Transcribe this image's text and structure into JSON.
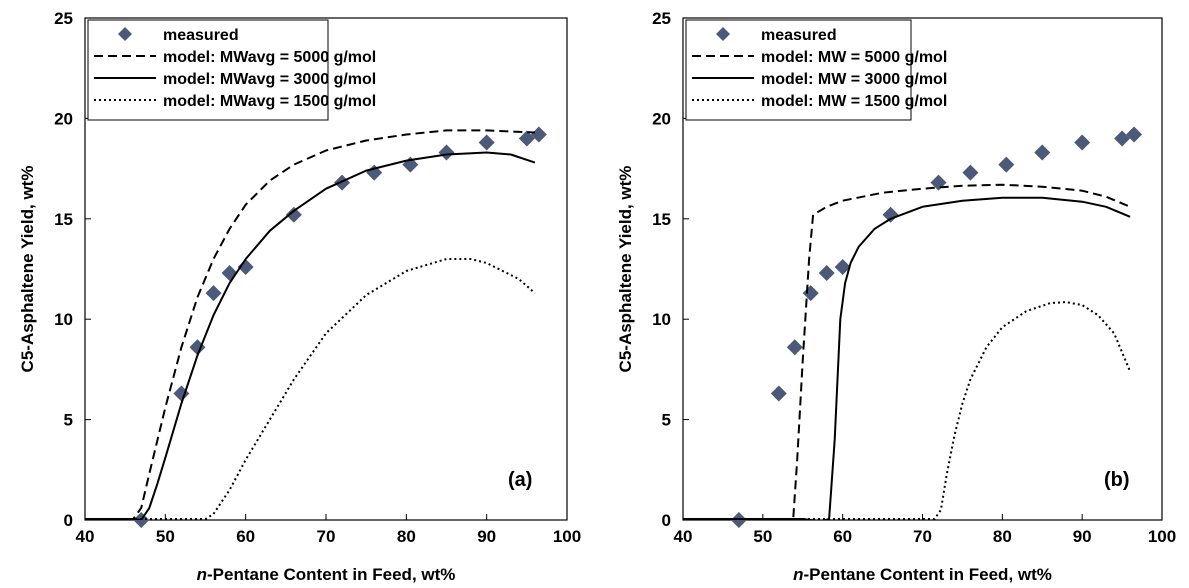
{
  "chart_data": [
    {
      "type": "line",
      "panel_label": "(a)",
      "xlabel_italic": "n",
      "xlabel_rest": "-Pentane Content in Feed, wt%",
      "ylabel": "C5-Asphaltene Yield, wt%",
      "xlim": [
        40,
        100
      ],
      "ylim": [
        0,
        25
      ],
      "xticks": [
        "40",
        "50",
        "60",
        "70",
        "80",
        "90",
        "100"
      ],
      "yticks": [
        "0",
        "5",
        "10",
        "15",
        "20",
        "25"
      ],
      "grid": false,
      "legend_position": "top-left",
      "series": [
        {
          "name": "measured",
          "style": "marker",
          "color": "#4a5a78",
          "x": [
            47,
            52,
            54,
            56,
            58,
            60,
            66,
            72,
            76,
            80.5,
            85,
            90,
            95,
            96.5
          ],
          "y": [
            0,
            6.3,
            8.6,
            11.3,
            12.3,
            12.6,
            15.2,
            16.8,
            17.3,
            17.7,
            18.3,
            18.8,
            19.0,
            19.2
          ]
        },
        {
          "name": "model: MWavg = 5000 g/mol",
          "style": "dashed",
          "color": "#000000",
          "x": [
            40,
            46,
            47,
            48,
            50,
            52,
            54,
            56,
            58,
            60,
            63,
            66,
            70,
            75,
            80,
            85,
            90,
            93,
            96
          ],
          "y": [
            0.05,
            0.05,
            0.6,
            2.3,
            5.6,
            8.6,
            11.1,
            13.0,
            14.5,
            15.7,
            16.9,
            17.7,
            18.4,
            18.9,
            19.2,
            19.4,
            19.4,
            19.35,
            19.3
          ]
        },
        {
          "name": "model: MWavg = 3000 g/mol",
          "style": "solid",
          "color": "#000000",
          "x": [
            40,
            46,
            47,
            48,
            49,
            50,
            52,
            54,
            56,
            58,
            60,
            63,
            66,
            70,
            75,
            80,
            85,
            90,
            93,
            96
          ],
          "y": [
            0.05,
            0.05,
            0.0,
            0.6,
            1.8,
            3.1,
            5.8,
            8.2,
            10.2,
            11.8,
            13.0,
            14.4,
            15.4,
            16.5,
            17.4,
            17.9,
            18.2,
            18.3,
            18.2,
            17.8
          ]
        },
        {
          "name": "model: MWavg = 1500 g/mol",
          "style": "dotted",
          "color": "#000000",
          "x": [
            40,
            55,
            56,
            58,
            60,
            63,
            66,
            70,
            75,
            80,
            85,
            88,
            90,
            92,
            94,
            96
          ],
          "y": [
            0.05,
            0.05,
            0.3,
            1.5,
            3.0,
            5.0,
            7.0,
            9.3,
            11.2,
            12.4,
            13.0,
            13.0,
            12.8,
            12.4,
            12.0,
            11.3
          ]
        }
      ]
    },
    {
      "type": "line",
      "panel_label": "(b)",
      "xlabel_italic": "n",
      "xlabel_rest": "-Pentane Content in Feed, wt%",
      "ylabel": "C5-Asphaltene Yield, wt%",
      "xlim": [
        40,
        100
      ],
      "ylim": [
        0,
        25
      ],
      "xticks": [
        "40",
        "50",
        "60",
        "70",
        "80",
        "90",
        "100"
      ],
      "yticks": [
        "0",
        "5",
        "10",
        "15",
        "20",
        "25"
      ],
      "grid": false,
      "legend_position": "top-left",
      "series": [
        {
          "name": "measured",
          "style": "marker",
          "color": "#4a5a78",
          "x": [
            47,
            52,
            54,
            56,
            58,
            60,
            66,
            72,
            76,
            80.5,
            85,
            90,
            95,
            96.5
          ],
          "y": [
            0,
            6.3,
            8.6,
            11.3,
            12.3,
            12.6,
            15.2,
            16.8,
            17.3,
            17.7,
            18.3,
            18.8,
            19.0,
            19.2
          ]
        },
        {
          "name": "model: MW = 5000 g/mol",
          "style": "dashed",
          "color": "#000000",
          "x": [
            40,
            53.8,
            54.3,
            55,
            55.8,
            56.3,
            58,
            60,
            65,
            70,
            75,
            80,
            85,
            90,
            93,
            96
          ],
          "y": [
            0.05,
            0.05,
            3.0,
            8.0,
            13.0,
            15.2,
            15.6,
            15.9,
            16.3,
            16.5,
            16.65,
            16.7,
            16.6,
            16.4,
            16.1,
            15.6
          ]
        },
        {
          "name": "model: MW = 3000 g/mol",
          "style": "solid",
          "color": "#000000",
          "x": [
            40,
            55,
            56,
            57.5,
            58.3,
            59,
            59.7,
            60.3,
            61,
            62,
            64,
            66,
            70,
            75,
            80,
            85,
            90,
            93,
            96
          ],
          "y": [
            0.05,
            0.05,
            0.0,
            -0.05,
            0.05,
            4.0,
            10.0,
            11.8,
            12.8,
            13.6,
            14.5,
            15.0,
            15.6,
            15.9,
            16.05,
            16.05,
            15.85,
            15.6,
            15.1
          ]
        },
        {
          "name": "model: MW = 1500 g/mol",
          "style": "dotted",
          "color": "#000000",
          "x": [
            40,
            71.5,
            72.3,
            73,
            74,
            75,
            76,
            78,
            80,
            83,
            86,
            88,
            90,
            92,
            94,
            96
          ],
          "y": [
            0.05,
            0.05,
            0.5,
            2.2,
            4.2,
            5.8,
            7.0,
            8.6,
            9.6,
            10.4,
            10.8,
            10.85,
            10.7,
            10.2,
            9.3,
            7.4
          ]
        }
      ]
    }
  ]
}
